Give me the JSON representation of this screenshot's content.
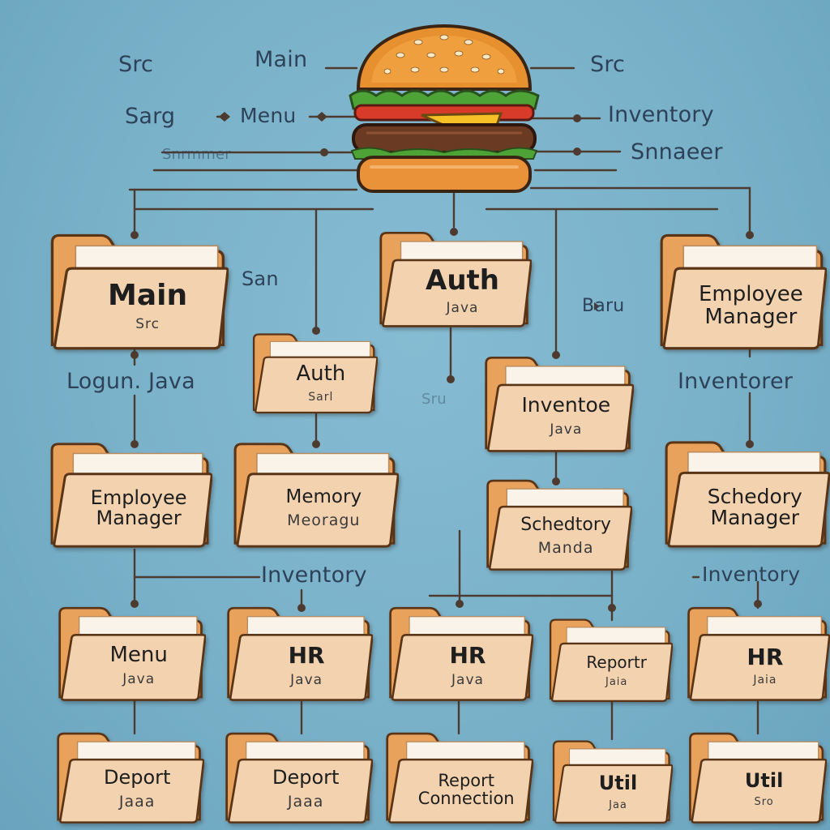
{
  "header_labels": {
    "left_top": "Src",
    "main": "Main",
    "right_top": "Src",
    "left_mid": "Sarg",
    "menu": "Menu",
    "inventory": "Inventory",
    "left_low": "Snrmmer",
    "right_low": "Snnaeer"
  },
  "floating_labels": {
    "san": "San",
    "baru": "Baru",
    "logun": "Logun. Java",
    "inventorer": "Inventorer",
    "inventory_mid": "Inventory",
    "inventory_right": "Inventory",
    "sru": "Sru"
  },
  "folders": {
    "main": {
      "title": "Main",
      "sub": "Src"
    },
    "auth_top": {
      "title": "Auth",
      "sub": "Java"
    },
    "employee_manager_top": {
      "title": "Employee\nManager",
      "sub": ""
    },
    "auth_small": {
      "title": "Auth",
      "sub": "Sarl"
    },
    "inventoe": {
      "title": "Inventoe",
      "sub": "Java"
    },
    "employee_manager_left": {
      "title": "Employee\nManager",
      "sub": ""
    },
    "memory": {
      "title": "Memory",
      "sub": "Meoragu"
    },
    "schedtory": {
      "title": "Schedtory",
      "sub": "Manda"
    },
    "schedory_manager": {
      "title": "Schedory\nManager",
      "sub": ""
    },
    "menu": {
      "title": "Menu",
      "sub": "Java"
    },
    "hr_1": {
      "title": "HR",
      "sub": "Java"
    },
    "hr_2": {
      "title": "HR",
      "sub": "Java"
    },
    "reportr": {
      "title": "Reportr",
      "sub": "Jaia"
    },
    "hr_3": {
      "title": "HR",
      "sub": "Jaia"
    },
    "deport_1": {
      "title": "Deport",
      "sub": "Jaaa"
    },
    "deport_2": {
      "title": "Deport",
      "sub": "Jaaa"
    },
    "report_connection": {
      "title": "Report\nConnection",
      "sub": ""
    },
    "util_1": {
      "title": "Util",
      "sub": "Jaa"
    },
    "util_2": {
      "title": "Util",
      "sub": "Sro"
    }
  },
  "colors": {
    "background": "#79b1c9",
    "folder_back": "#e9a25c",
    "folder_front": "#f3d2b0",
    "paper": "#faf3ea",
    "line": "#4e3b30",
    "text": "#2d4258"
  },
  "icons": {
    "root": "burger-icon",
    "node": "folder-icon"
  }
}
